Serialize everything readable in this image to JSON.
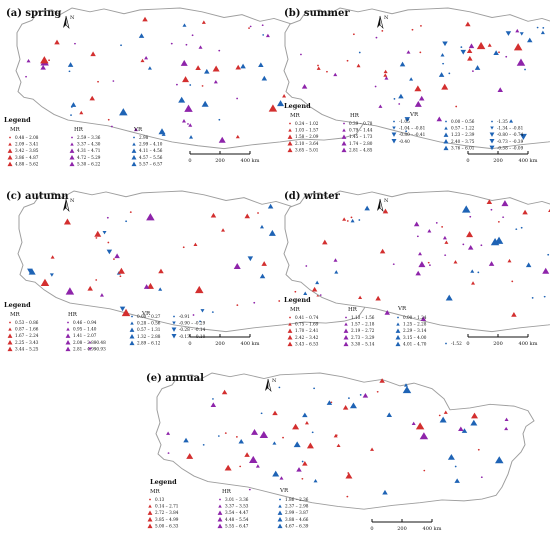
{
  "colors": {
    "MR": "#d32f2f",
    "HR": "#8e24aa",
    "VR": "#1e63b5",
    "outline": "#9e9e9e"
  },
  "common": {
    "legend_title": "Legend",
    "group_names": [
      "MR",
      "HR",
      "VR"
    ],
    "north_label": "N",
    "scale_labels": [
      "0",
      "200",
      "400 km"
    ],
    "north_icon": "north-arrow-icon"
  },
  "panels": [
    {
      "label": "(a) spring",
      "MR": [
        "0.48 – 2.08",
        "2.09 – 3.41",
        "3.42 – 3.85",
        "3.86 – 4.87",
        "4.88 – 5.62"
      ],
      "HR": [
        "2.59 – 3.36",
        "3.37 – 4.30",
        "4.31 – 4.71",
        "4.72 – 5.29",
        "5.30 – 6.22"
      ],
      "VR": [
        "2.98",
        "2.99 – 4.10",
        "4.11 – 4.56",
        "4.57 – 5.56",
        "5.57 – 6.57"
      ]
    },
    {
      "label": "(b) summer",
      "MR": [
        "0.24 – 1.02",
        "1.03 – 1.57",
        "1.58 – 2.09",
        "2.10 – 3.64",
        "3.65 – 5.01"
      ],
      "HR": [
        "0.39 – 0.78",
        "0.79 – 1.44",
        "1.45 – 1.73",
        "1.74 – 2.80",
        "2.81 – 4.85"
      ],
      "VR": [
        "-1.05",
        "-1.04 – -0.81",
        "-0.80 – -0.41",
        "-0.40",
        "0.00 – 0.56",
        "0.57 – 1.22",
        "1.23 – 2.39",
        "2.40 – 3.75",
        "3.76 – 6.01",
        "-1.35",
        "-1.34 – -0.81",
        "-0.80 – -0.74",
        "-0.73 – -0.39",
        "-0.38 – -0.09"
      ]
    },
    {
      "label": "(c) autumn",
      "MR": [
        "0.53 – 0.86",
        "0.87 – 1.66",
        "1.67 – 2.24",
        "2.25 – 3.43",
        "3.44 – 5.25"
      ],
      "HR": [
        "0.46 – 0.94",
        "0.95 – 1.40",
        "1.41 – 2.07",
        "2.08 – 2.80",
        "2.81 – 4.99",
        "-0.48",
        "-0.93"
      ],
      "VR": [
        "0.00 – 0.27",
        "0.28 – 0.56",
        "0.57 – 1.31",
        "1.32 – 2.88",
        "2.89 – 6.12",
        "-0.91",
        "-0.90 – -0.29",
        "-0.28 – -0.14",
        "-0.13 – -0.10"
      ]
    },
    {
      "label": "(d) winter",
      "MR": [
        "0.41 – 0.74",
        "0.75 – 1.69",
        "1.70 – 2.41",
        "2.42 – 3.42",
        "3.43 – 6.53"
      ],
      "HR": [
        "1.13 – 1.56",
        "1.57 – 2.18",
        "2.19 – 2.72",
        "2.73 – 3.29",
        "3.30 – 5.14"
      ],
      "VR": [
        "0.00 – 1.24",
        "1.25 – 2.28",
        "2.29 – 3.14",
        "3.15 – 4.00",
        "4.01 – 4.70",
        "-1.52"
      ]
    },
    {
      "label": "(e) annual",
      "MR": [
        "0.13",
        "0.14 – 2.71",
        "2.72 – 3.84",
        "3.85 – 4.99",
        "5.00 – 6.33"
      ],
      "HR": [
        "3.01 – 3.36",
        "3.37 – 3.53",
        "3.54 – 4.47",
        "4.48 – 5.54",
        "5.55 – 6.47"
      ],
      "VR": [
        "1.86 – 2.36",
        "2.37 – 2.98",
        "2.99 – 3.87",
        "3.88 – 4.66",
        "4.67 – 6.39"
      ]
    }
  ]
}
